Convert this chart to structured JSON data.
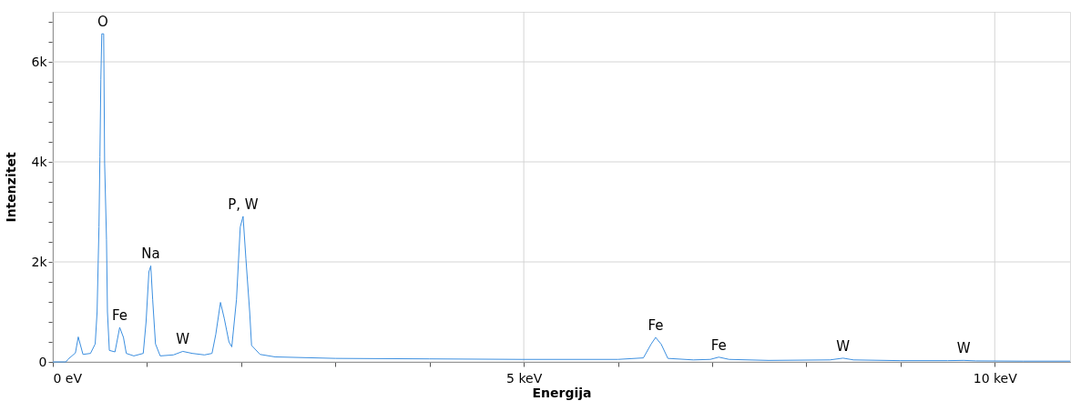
{
  "chart_data": {
    "type": "line",
    "xlabel": "Energija",
    "ylabel": "Intenzitet",
    "x": [
      0.0,
      0.14,
      0.16,
      0.24,
      0.27,
      0.32,
      0.4,
      0.45,
      0.47,
      0.49,
      0.5,
      0.51,
      0.52,
      0.54,
      0.55,
      0.57,
      0.58,
      0.6,
      0.66,
      0.71,
      0.75,
      0.78,
      0.86,
      0.96,
      0.99,
      1.02,
      1.04,
      1.06,
      1.09,
      1.14,
      1.28,
      1.38,
      1.48,
      1.61,
      1.69,
      1.73,
      1.78,
      1.82,
      1.87,
      1.9,
      1.95,
      1.99,
      2.02,
      2.05,
      2.09,
      2.11,
      2.2,
      2.36,
      3.0,
      4.0,
      4.98,
      6.0,
      6.27,
      6.35,
      6.4,
      6.46,
      6.53,
      6.8,
      6.98,
      7.07,
      7.18,
      7.6,
      8.25,
      8.39,
      8.5,
      9.0,
      9.5,
      9.67,
      9.8,
      10.3,
      10.8
    ],
    "series": [
      {
        "color": "#3c8fe0",
        "values": [
          0,
          0,
          50,
          180,
          500,
          150,
          170,
          360,
          1000,
          2700,
          4100,
          5640,
          6560,
          6560,
          3980,
          2440,
          1000,
          230,
          200,
          690,
          490,
          170,
          120,
          170,
          800,
          1800,
          1920,
          1250,
          360,
          120,
          140,
          210,
          170,
          140,
          170,
          550,
          1190,
          870,
          400,
          300,
          1250,
          2700,
          2910,
          2060,
          1000,
          330,
          150,
          100,
          70,
          60,
          50,
          50,
          80,
          350,
          490,
          350,
          70,
          40,
          50,
          95,
          50,
          30,
          40,
          75,
          40,
          25,
          25,
          30,
          20,
          15,
          15
        ]
      }
    ],
    "xlim": [
      0,
      10.8
    ],
    "ylim": [
      0,
      7000
    ],
    "xticks": [
      {
        "value": 0,
        "label": "0 eV"
      },
      {
        "value": 1,
        "label": null
      },
      {
        "value": 2,
        "label": null
      },
      {
        "value": 3,
        "label": null
      },
      {
        "value": 4,
        "label": null
      },
      {
        "value": 5,
        "label": "5 keV"
      },
      {
        "value": 6,
        "label": null
      },
      {
        "value": 7,
        "label": null
      },
      {
        "value": 8,
        "label": null
      },
      {
        "value": 9,
        "label": null
      },
      {
        "value": 10,
        "label": "10 keV"
      }
    ],
    "yticks": [
      0,
      {
        "value": 400,
        "label": null
      },
      {
        "value": 800,
        "label": null
      },
      {
        "value": 1200,
        "label": null
      },
      {
        "value": 1600,
        "label": null
      },
      {
        "value": 2000,
        "label": "2k"
      },
      {
        "value": 2400,
        "label": null
      },
      {
        "value": 2800,
        "label": null
      },
      {
        "value": 3200,
        "label": null
      },
      {
        "value": 3600,
        "label": null
      },
      {
        "value": 4000,
        "label": "4k"
      },
      {
        "value": 4400,
        "label": null
      },
      {
        "value": 4800,
        "label": null
      },
      {
        "value": 5200,
        "label": null
      },
      {
        "value": 5600,
        "label": null
      },
      {
        "value": 6000,
        "label": "6k"
      },
      {
        "value": 6400,
        "label": null
      },
      {
        "value": 6800,
        "label": null
      }
    ],
    "grid": true,
    "line_style": "solid",
    "marker": "none",
    "annotations": [
      {
        "text": "O",
        "x": 0.53,
        "y": 6560
      },
      {
        "text": "Fe",
        "x": 0.71,
        "y": 690
      },
      {
        "text": "Na",
        "x": 1.04,
        "y": 1920
      },
      {
        "text": "W",
        "x": 1.38,
        "y": 210
      },
      {
        "text": "P, W",
        "x": 2.02,
        "y": 2910
      },
      {
        "text": "Fe",
        "x": 6.4,
        "y": 490
      },
      {
        "text": "Fe",
        "x": 7.07,
        "y": 95
      },
      {
        "text": "W",
        "x": 8.39,
        "y": 75
      },
      {
        "text": "W",
        "x": 9.67,
        "y": 30
      }
    ]
  }
}
